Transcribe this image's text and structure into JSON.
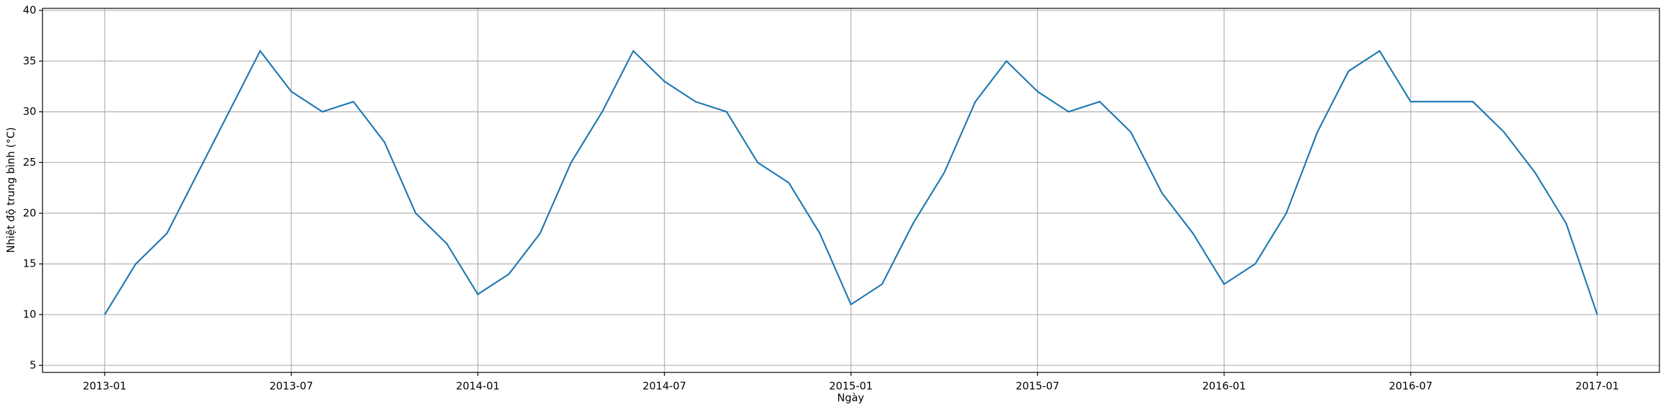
{
  "chart_data": {
    "type": "line",
    "xlabel": "Ngày",
    "ylabel": "Nhiệt độ trung bình (°C)",
    "x": [
      "2013-01",
      "2013-02",
      "2013-03",
      "2013-04",
      "2013-05",
      "2013-06",
      "2013-07",
      "2013-08",
      "2013-09",
      "2013-10",
      "2013-11",
      "2013-12",
      "2014-01",
      "2014-02",
      "2014-03",
      "2014-04",
      "2014-05",
      "2014-06",
      "2014-07",
      "2014-08",
      "2014-09",
      "2014-10",
      "2014-11",
      "2014-12",
      "2015-01",
      "2015-02",
      "2015-03",
      "2015-04",
      "2015-05",
      "2015-06",
      "2015-07",
      "2015-08",
      "2015-09",
      "2015-10",
      "2015-11",
      "2015-12",
      "2016-01",
      "2016-02",
      "2016-03",
      "2016-04",
      "2016-05",
      "2016-06",
      "2016-07",
      "2016-08",
      "2016-09",
      "2016-10",
      "2016-11",
      "2016-12",
      "2017-01"
    ],
    "series": [
      {
        "name": "Nhiệt độ trung bình",
        "color": "#1f77b4",
        "values": [
          10,
          15,
          18,
          24,
          30,
          36,
          32,
          30,
          31,
          27,
          20,
          17,
          12,
          14,
          18,
          25,
          30,
          36,
          33,
          31,
          30,
          25,
          23,
          18,
          11,
          13,
          19,
          24,
          31,
          35,
          32,
          30,
          31,
          28,
          22,
          18,
          13,
          15,
          20,
          28,
          34,
          36,
          31,
          31,
          31,
          28,
          24,
          19,
          10
        ]
      }
    ],
    "xlim": [
      "2012-11",
      "2017-03"
    ],
    "xticks": [
      "2013-01",
      "2013-07",
      "2014-01",
      "2014-07",
      "2015-01",
      "2015-07",
      "2016-01",
      "2016-07",
      "2017-01"
    ],
    "ylim": [
      4.3,
      40.2
    ],
    "yticks": [
      5,
      10,
      15,
      20,
      25,
      30,
      35,
      40
    ],
    "grid": true
  }
}
